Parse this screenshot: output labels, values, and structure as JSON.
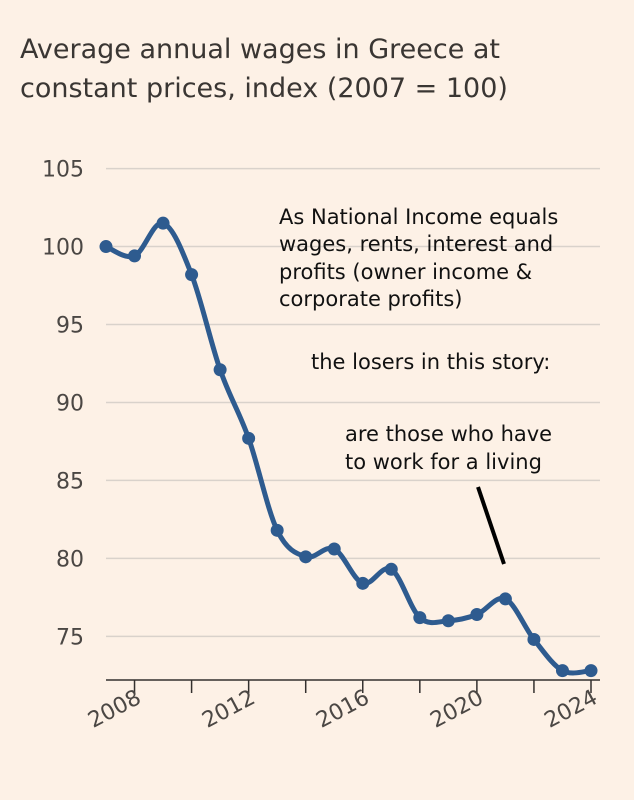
{
  "chart_data": {
    "type": "line",
    "title": [
      "Average annual wages in Greece at",
      "constant prices, index (2007 = 100)"
    ],
    "x": [
      2007,
      2008,
      2009,
      2010,
      2011,
      2012,
      2013,
      2014,
      2015,
      2016,
      2017,
      2018,
      2019,
      2020,
      2021,
      2022,
      2023,
      2024
    ],
    "series": [
      {
        "values": [
          100.0,
          99.4,
          101.5,
          98.2,
          92.1,
          87.7,
          81.8,
          80.1,
          80.6,
          78.4,
          79.3,
          76.2,
          76.0,
          76.4,
          77.4,
          74.8,
          72.8,
          72.8
        ],
        "color": "#2e5b8f"
      }
    ],
    "xticks": [
      "2008",
      "2012",
      "2016",
      "2020",
      "2024"
    ],
    "xtick_values": [
      2008,
      2012,
      2016,
      2020,
      2024
    ],
    "yticks": [
      "105",
      "100",
      "95",
      "90",
      "85",
      "80",
      "75"
    ],
    "ytick_values": [
      105,
      100,
      95,
      90,
      85,
      80,
      75
    ],
    "xlim": [
      2007,
      2024
    ],
    "ylim": [
      72.2,
      106
    ],
    "grid": "horizontal",
    "annotations": [
      "As National Income equals",
      "wages, rents, interest and",
      "profits (owner income &",
      "corporate profits)",
      "the losers in this story:",
      "are those who have",
      "to work for a living"
    ]
  },
  "colors": {
    "background": "#fdf1e6",
    "line": "#2e5b8f",
    "grid": "#d9d2cb",
    "axis": "#33302e"
  }
}
